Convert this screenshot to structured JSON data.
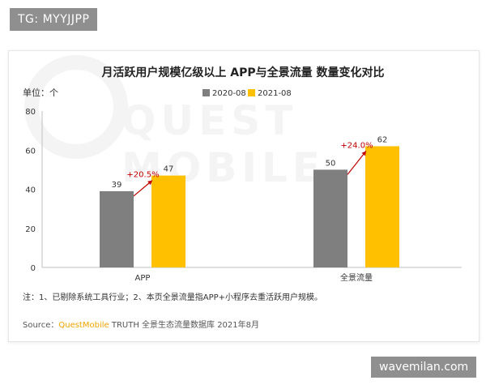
{
  "tg_badge": "TG: MYYJJPP",
  "site_badge": "wavemilan.com",
  "watermark": "QUEST MOBILE",
  "chart_data": {
    "type": "bar",
    "title": "月活跃用户规模亿级以上 APP与全景流量 数量变化对比",
    "unit_label": "单位：个",
    "categories": [
      "APP",
      "全景流量"
    ],
    "series": [
      {
        "name": "2020-08",
        "values": [
          39,
          50
        ],
        "color": "#7f7f7f"
      },
      {
        "name": "2021-08",
        "values": [
          47,
          62
        ],
        "color": "#ffc000"
      }
    ],
    "growth_labels": [
      "+20.5%",
      "+24.0%"
    ],
    "growth_color": "#c00000",
    "ylim": [
      0,
      80
    ],
    "yticks": [
      0,
      20,
      40,
      60,
      80
    ],
    "legend_position": "top",
    "grid": false
  },
  "note": "注：1、已剔除系统工具行业；2、本页全景流量指APP+小程序去重活跃用户规模。",
  "source": {
    "prefix": "Source：",
    "brand": "QuestMobile",
    "suffix": " TRUTH 全景生态流量数据库 2021年8月",
    "brand_color": "#f0a500"
  }
}
